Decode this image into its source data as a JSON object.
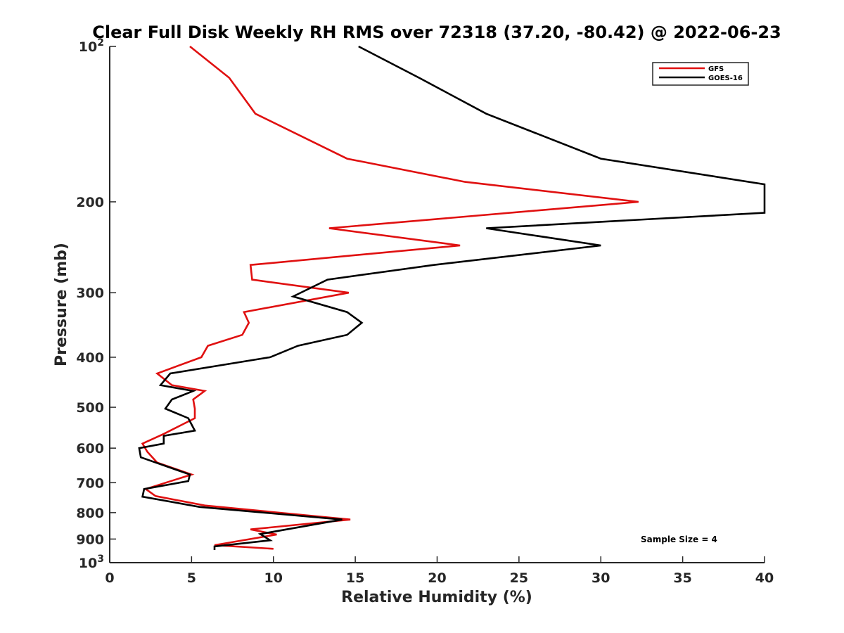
{
  "chart_data": {
    "type": "line",
    "title": "Clear Full Disk Weekly RH RMS over 72318 (37.20, -80.42) @ 2022-06-23",
    "xlabel": "Relative Humidity (%)",
    "ylabel": "Pressure (mb)",
    "xlim": [
      0,
      40
    ],
    "ylim": [
      100,
      1000
    ],
    "y_scale": "log",
    "y_reversed": true,
    "grid": false,
    "legend_position": "top-right",
    "x_ticks": [
      0,
      5,
      10,
      15,
      20,
      25,
      30,
      35,
      40
    ],
    "y_ticks": [
      {
        "value": 100,
        "label": "10",
        "exp": "2"
      },
      {
        "value": 200,
        "label": "200",
        "exp": ""
      },
      {
        "value": 300,
        "label": "300",
        "exp": ""
      },
      {
        "value": 400,
        "label": "400",
        "exp": ""
      },
      {
        "value": 500,
        "label": "500",
        "exp": ""
      },
      {
        "value": 600,
        "label": "600",
        "exp": ""
      },
      {
        "value": 700,
        "label": "700",
        "exp": ""
      },
      {
        "value": 800,
        "label": "800",
        "exp": ""
      },
      {
        "value": 900,
        "label": "900",
        "exp": ""
      },
      {
        "value": 1000,
        "label": "10",
        "exp": "3"
      }
    ],
    "series": [
      {
        "name": "GFS",
        "color": "#e01010",
        "points": [
          [
            4.9,
            100
          ],
          [
            7.3,
            115
          ],
          [
            8.9,
            135
          ],
          [
            14.5,
            165
          ],
          [
            21.7,
            183
          ],
          [
            32.3,
            200
          ],
          [
            13.4,
            225
          ],
          [
            21.4,
            243
          ],
          [
            8.6,
            265
          ],
          [
            8.7,
            283
          ],
          [
            14.6,
            300
          ],
          [
            8.2,
            327
          ],
          [
            8.5,
            343
          ],
          [
            8.1,
            362
          ],
          [
            6.0,
            380
          ],
          [
            5.6,
            400
          ],
          [
            2.9,
            430
          ],
          [
            3.8,
            453
          ],
          [
            5.8,
            465
          ],
          [
            5.1,
            483
          ],
          [
            5.2,
            503
          ],
          [
            5.2,
            525
          ],
          [
            3.3,
            563
          ],
          [
            2.0,
            588
          ],
          [
            2.3,
            610
          ],
          [
            2.9,
            640
          ],
          [
            5.0,
            675
          ],
          [
            2.2,
            720
          ],
          [
            2.8,
            743
          ],
          [
            5.8,
            775
          ],
          [
            14.7,
            825
          ],
          [
            8.6,
            862
          ],
          [
            10.2,
            882
          ],
          [
            6.4,
            925
          ],
          [
            10.0,
            940
          ]
        ]
      },
      {
        "name": "GOES-16",
        "color": "#000000",
        "points": [
          [
            15.2,
            100
          ],
          [
            18.9,
            115
          ],
          [
            23.0,
            135
          ],
          [
            30.0,
            165
          ],
          [
            40.0,
            185
          ],
          [
            40.0,
            210
          ],
          [
            23.0,
            225
          ],
          [
            30.0,
            243
          ],
          [
            19.8,
            265
          ],
          [
            13.3,
            283
          ],
          [
            11.2,
            305
          ],
          [
            14.5,
            327
          ],
          [
            15.4,
            343
          ],
          [
            14.5,
            362
          ],
          [
            11.5,
            380
          ],
          [
            9.8,
            400
          ],
          [
            3.7,
            430
          ],
          [
            3.1,
            453
          ],
          [
            5.1,
            465
          ],
          [
            3.8,
            483
          ],
          [
            3.4,
            503
          ],
          [
            4.8,
            525
          ],
          [
            5.2,
            555
          ],
          [
            3.3,
            568
          ],
          [
            3.3,
            588
          ],
          [
            1.8,
            600
          ],
          [
            1.9,
            625
          ],
          [
            4.9,
            675
          ],
          [
            4.8,
            695
          ],
          [
            2.1,
            720
          ],
          [
            2.0,
            745
          ],
          [
            5.5,
            780
          ],
          [
            14.2,
            825
          ],
          [
            10.8,
            862
          ],
          [
            9.2,
            880
          ],
          [
            9.8,
            905
          ],
          [
            6.4,
            930
          ],
          [
            6.4,
            945
          ]
        ]
      }
    ],
    "annotations": [
      "Sample Size = 4"
    ]
  }
}
